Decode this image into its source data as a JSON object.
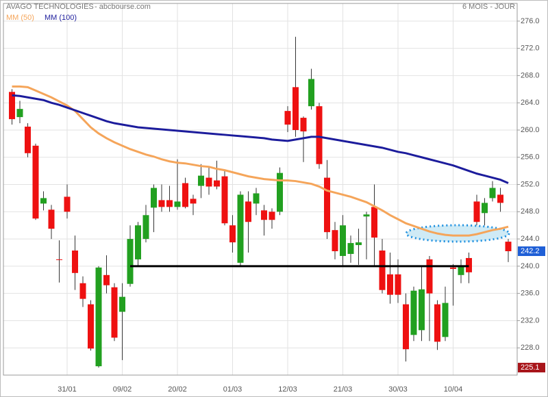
{
  "chart_data": {
    "type": "candlestick",
    "title": "AVAGO TECHNOLOGIES",
    "subtitle": "- abcbourse.com",
    "period": "6 MOIS - JOUR",
    "categories": [
      null,
      null,
      null,
      null,
      null,
      null,
      null,
      "31/01",
      null,
      null,
      null,
      null,
      null,
      null,
      "09/02",
      null,
      null,
      null,
      null,
      null,
      null,
      "20/02",
      null,
      null,
      null,
      null,
      null,
      null,
      "01/03",
      null,
      null,
      null,
      null,
      null,
      null,
      "12/03",
      null,
      null,
      null,
      null,
      null,
      null,
      "21/03",
      null,
      null,
      null,
      null,
      null,
      null,
      "30/03",
      null,
      null,
      null,
      null,
      null,
      null,
      "10/04",
      null,
      null,
      null,
      null,
      null,
      null,
      null
    ],
    "open": [
      265.6,
      261.9,
      260.5,
      257.7,
      249.2,
      248.3,
      241,
      250.2,
      242.3,
      237.5,
      234.4,
      225.3,
      238.7,
      236.9,
      233.3,
      237.4,
      241,
      244,
      248.6,
      249.7,
      249.7,
      248.7,
      252.2,
      249.9,
      251.8,
      253,
      252.6,
      253.2,
      246,
      240.5,
      249.5,
      249.2,
      248.2,
      248,
      248,
      262.8,
      266.3,
      261.8,
      263.5,
      263.5,
      253,
      245.3,
      241.5,
      241.8,
      243.1,
      247.3,
      248.7,
      242.3,
      238.8,
      238.8,
      234.4,
      229.9,
      230.6,
      241,
      234.4,
      229.6,
      239.8,
      238.7,
      241.2,
      249.5,
      247.8,
      250,
      250.5,
      243.6
    ],
    "high": [
      266,
      264.3,
      261,
      258,
      251,
      249,
      243.8,
      252,
      244.5,
      238.5,
      235,
      240,
      241.6,
      237.5,
      237.5,
      246,
      246.5,
      249,
      252,
      252,
      251.8,
      255.7,
      253,
      250.5,
      255,
      254.5,
      255.5,
      254,
      247.5,
      251,
      251,
      251.5,
      249,
      248.5,
      254.5,
      263.5,
      273.7,
      262,
      269,
      264,
      255.6,
      246.5,
      247.5,
      244.5,
      245.5,
      248,
      252,
      244,
      242,
      241,
      236,
      237,
      240,
      241.5,
      235,
      237,
      240.3,
      241,
      242,
      250.5,
      250,
      252.5,
      251.5,
      244
    ],
    "low": [
      260.8,
      261,
      256,
      246.8,
      248.2,
      244,
      237.6,
      247,
      236.5,
      234,
      227.6,
      225.1,
      236,
      229,
      226.2,
      237,
      240,
      243.5,
      245,
      248,
      248,
      248.3,
      248.5,
      247.5,
      250,
      250.5,
      251.3,
      246,
      242,
      240,
      242,
      247.5,
      244.5,
      245.5,
      247.5,
      259.7,
      259,
      255.3,
      263,
      254.3,
      244,
      241,
      240,
      240.5,
      240.2,
      241,
      240,
      236,
      234.5,
      234.6,
      226,
      229,
      229,
      229,
      227.7,
      229,
      234.2,
      237.5,
      237.5,
      246,
      246,
      249.5,
      248,
      240.6
    ],
    "close": [
      261.6,
      263.1,
      256.6,
      247,
      250,
      245.5,
      240.9,
      248,
      239,
      235.2,
      227.9,
      239.8,
      237.2,
      229.5,
      235.5,
      244,
      246,
      247.5,
      251.5,
      248.7,
      248.7,
      249.5,
      248.7,
      249.2,
      253.3,
      251.7,
      251.7,
      246.3,
      243.5,
      250.5,
      246.5,
      250.7,
      246.8,
      246.8,
      253.7,
      260.8,
      260,
      259.8,
      267.5,
      255,
      245,
      242.2,
      246,
      243.4,
      243.5,
      247.6,
      244.2,
      236.5,
      235.8,
      235.8,
      227.8,
      236.4,
      236.6,
      236,
      228.9,
      234.6,
      239.6,
      240.1,
      239.1,
      246.5,
      249.3,
      251.5,
      249.3,
      242.2
    ],
    "up_color": "#22a020",
    "down_color": "#ee1111",
    "series": [
      {
        "name": "MM (50)",
        "color": "#f5a55a",
        "values": [
          266.4,
          266.4,
          266.3,
          265.8,
          265.3,
          264.8,
          264.2,
          263.6,
          262.8,
          261.6,
          260.4,
          259.5,
          258.8,
          258.2,
          257.7,
          257.2,
          256.8,
          256.4,
          256.1,
          255.7,
          255.4,
          255.2,
          255.1,
          254.9,
          254.7,
          254.6,
          254.3,
          254.1,
          253.8,
          253.5,
          253.2,
          253,
          252.8,
          252.7,
          252.6,
          252.6,
          252.5,
          252.3,
          252.1,
          251.7,
          251.1,
          250.8,
          250.5,
          250.2,
          249.8,
          249.4,
          248.8,
          248.2,
          247.5,
          246.9,
          246.3,
          245.9,
          245.5,
          245.1,
          244.8,
          244.6,
          244.5,
          244.5,
          244.5,
          244.7,
          245,
          245.3,
          245.5,
          245.8
        ]
      },
      {
        "name": "MM (100)",
        "color": "#1c1c9c",
        "values": [
          265.1,
          265,
          264.8,
          264.6,
          264.4,
          264,
          263.7,
          263.3,
          262.9,
          262.5,
          262.1,
          261.7,
          261.3,
          261,
          260.8,
          260.6,
          260.4,
          260.3,
          260.2,
          260.1,
          260,
          259.9,
          259.8,
          259.7,
          259.6,
          259.5,
          259.4,
          259.3,
          259.2,
          259.1,
          259,
          258.9,
          258.8,
          258.6,
          258.5,
          258.4,
          258.6,
          258.8,
          259,
          259,
          258.8,
          258.6,
          258.4,
          258.2,
          258,
          257.8,
          257.6,
          257.4,
          257.1,
          256.8,
          256.6,
          256.3,
          256,
          255.7,
          255.4,
          255.1,
          254.8,
          254.4,
          254,
          253.6,
          253.3,
          253,
          252.7,
          252.2
        ]
      }
    ],
    "support_level": 240,
    "price_labels": [
      {
        "value": 242.2,
        "color": "#1f5fd6"
      },
      {
        "value": 225.1,
        "color": "#a8151a"
      }
    ],
    "ylim": [
      224,
      278.6
    ],
    "yticks": [
      {
        "value": 228,
        "label": "228.0"
      },
      {
        "value": 232,
        "label": "232.0"
      },
      {
        "value": 236,
        "label": "236.0"
      },
      {
        "value": 240,
        "label": "240.0"
      },
      {
        "value": 244,
        "label": "244.0"
      },
      {
        "value": 248,
        "label": "248.0"
      },
      {
        "value": 252,
        "label": "252.0"
      },
      {
        "value": 256,
        "label": "256.0"
      },
      {
        "value": 260,
        "label": "260.0"
      },
      {
        "value": 264,
        "label": "264.0"
      },
      {
        "value": 268,
        "label": "268.0"
      },
      {
        "value": 272,
        "label": "272.0"
      },
      {
        "value": 276,
        "label": "276.0"
      }
    ],
    "grid": true
  }
}
